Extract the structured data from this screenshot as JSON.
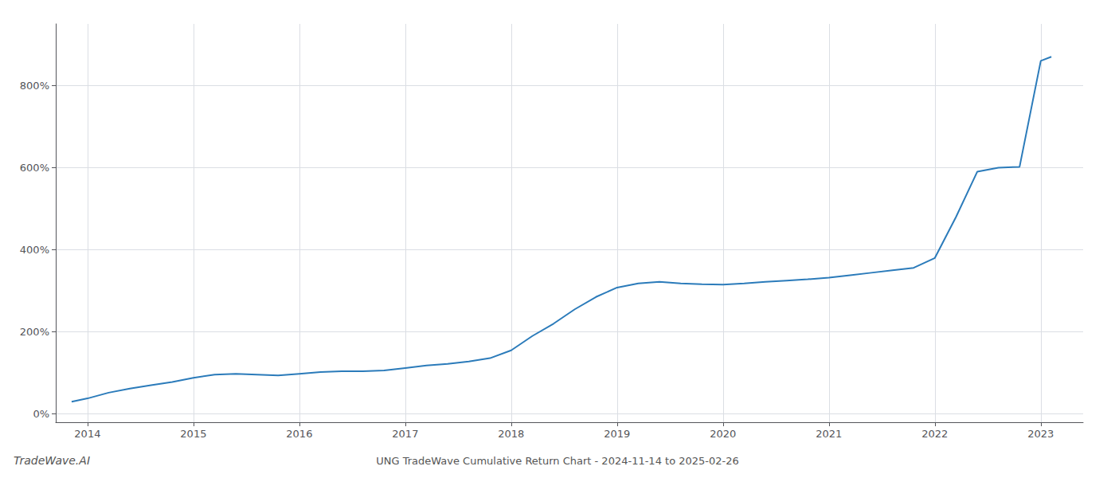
{
  "chart_data": {
    "type": "line",
    "title": "UNG TradeWave Cumulative Return Chart - 2024-11-14 to 2025-02-26",
    "annotations": [
      "TradeWave.AI"
    ],
    "color": "#2b7bba",
    "grid": true,
    "x": [
      2013.85,
      2014.0,
      2014.2,
      2014.4,
      2014.6,
      2014.8,
      2015.0,
      2015.2,
      2015.4,
      2015.6,
      2015.8,
      2016.0,
      2016.2,
      2016.4,
      2016.6,
      2016.8,
      2017.0,
      2017.2,
      2017.4,
      2017.6,
      2017.8,
      2018.0,
      2018.2,
      2018.4,
      2018.6,
      2018.8,
      2019.0,
      2019.2,
      2019.4,
      2019.6,
      2019.8,
      2020.0,
      2020.2,
      2020.4,
      2020.6,
      2020.8,
      2021.0,
      2021.2,
      2021.4,
      2021.6,
      2021.8,
      2022.0,
      2022.2,
      2022.4,
      2022.6,
      2022.8,
      2023.0,
      2023.1
    ],
    "values": [
      30,
      38,
      52,
      62,
      70,
      78,
      88,
      96,
      98,
      96,
      94,
      98,
      102,
      104,
      104,
      106,
      112,
      118,
      122,
      128,
      136,
      155,
      190,
      220,
      255,
      285,
      308,
      318,
      322,
      318,
      316,
      315,
      318,
      322,
      325,
      328,
      332,
      338,
      344,
      350,
      356,
      380,
      480,
      590,
      600,
      602,
      860,
      870
    ],
    "xlim": [
      2013.7,
      2023.4
    ],
    "xticks": [
      2014,
      2015,
      2016,
      2017,
      2018,
      2019,
      2020,
      2021,
      2022,
      2023
    ],
    "ylim": [
      -20,
      950
    ],
    "yticks": [
      {
        "value": 0,
        "label": "0%"
      },
      {
        "value": 200,
        "label": "200%"
      },
      {
        "value": 400,
        "label": "400%"
      },
      {
        "value": 600,
        "label": "600%"
      },
      {
        "value": 800,
        "label": "800%"
      }
    ]
  }
}
